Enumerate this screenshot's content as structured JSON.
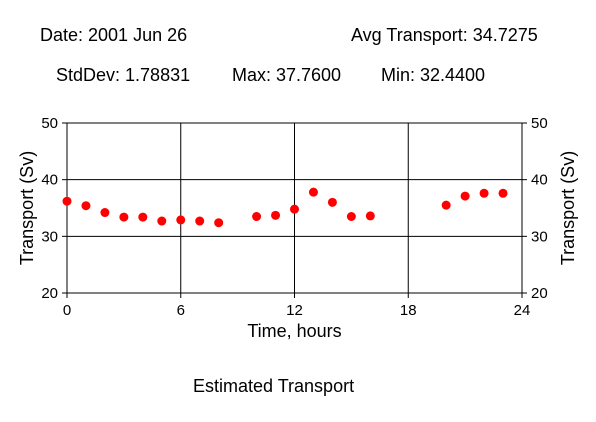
{
  "header": {
    "date": "Date: 2001 Jun 26",
    "avg": "Avg Transport: 34.7275",
    "stddev": "StdDev: 1.78831",
    "max": "Max: 37.7600",
    "min": "Min: 32.4400"
  },
  "footer": {
    "caption": "Estimated Transport"
  },
  "chart_data": {
    "type": "scatter",
    "xlabel": "Time, hours",
    "ylabel": "Transport (Sv)",
    "xlim": [
      0,
      24
    ],
    "ylim": [
      20,
      50
    ],
    "xticks": [
      "0",
      "6",
      "12",
      "18",
      "24"
    ],
    "yticks": [
      "20",
      "30",
      "40",
      "50"
    ],
    "grid": true,
    "marker_color": "#ff0000",
    "x": [
      0,
      1,
      2,
      3,
      4,
      5,
      6,
      7,
      8,
      10,
      11,
      12,
      13,
      14,
      15,
      16,
      20,
      21,
      22,
      23
    ],
    "y": [
      36.2,
      35.4,
      34.2,
      33.4,
      33.4,
      32.7,
      32.9,
      32.7,
      32.4,
      33.5,
      33.7,
      34.8,
      37.8,
      36.0,
      33.5,
      33.6,
      35.5,
      37.1,
      37.6,
      37.6
    ]
  }
}
